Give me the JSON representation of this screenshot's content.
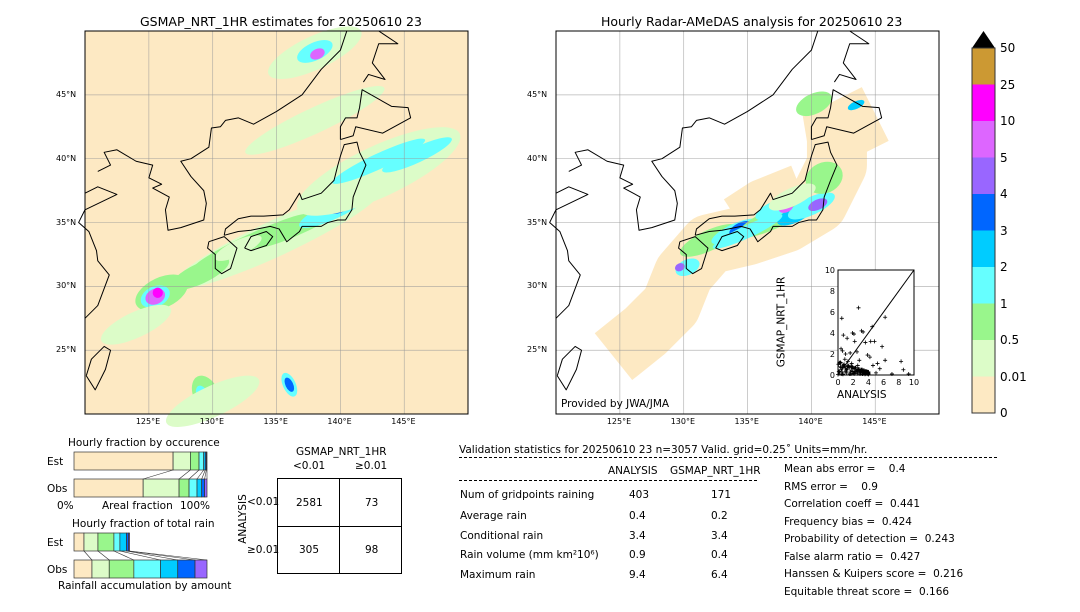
{
  "left_map": {
    "title": "GSMAP_NRT_1HR estimates for 20250610 23"
  },
  "right_map": {
    "title": "Hourly Radar-AMeDAS analysis for 20250610 23",
    "credit": "Provided by JWA/JMA"
  },
  "lon_ticks": [
    "125°E",
    "130°E",
    "135°E",
    "140°E",
    "145°E"
  ],
  "lat_ticks": [
    "45°N",
    "40°N",
    "35°N",
    "30°N",
    "25°N"
  ],
  "colorbar": {
    "labels": [
      "0",
      "0.01",
      "0.5",
      "1",
      "2",
      "3",
      "4",
      "5",
      "10",
      "25",
      "50"
    ],
    "colors": [
      "#fde9c3",
      "#dcfcc8",
      "#99f68c",
      "#66ffff",
      "#00ccff",
      "#0066ff",
      "#9966ff",
      "#dd66ff",
      "#ff00ff",
      "#cc9933"
    ],
    "extend_color": "#000000"
  },
  "occurrence": {
    "title": "Hourly fraction by occurence",
    "rows": [
      "Est",
      "Obs"
    ],
    "xlabel_left": "0%",
    "xlabel_mid": "Areal fraction",
    "xlabel_right": "100%",
    "est": [
      0.745,
      0.13,
      0.065,
      0.035,
      0.012,
      0.008,
      0.005
    ],
    "obs": [
      0.52,
      0.27,
      0.075,
      0.06,
      0.035,
      0.022,
      0.018
    ]
  },
  "total_rain": {
    "title": "Hourly fraction of total rain",
    "rows": [
      "Est",
      "Obs"
    ],
    "xlabel": "Rainfall accumulation by amount",
    "est": [
      0.075,
      0.105,
      0.12,
      0.045,
      0.05,
      0.015,
      0.008
    ],
    "obs": [
      0.135,
      0.13,
      0.185,
      0.2,
      0.13,
      0.13,
      0.09
    ]
  },
  "contingency": {
    "title": "GSMAP_NRT_1HR",
    "col_labels": [
      "<0.01",
      "≥0.01"
    ],
    "row_title": "ANALYSIS",
    "row_labels": [
      "<0.01",
      "≥0.01"
    ],
    "cells": [
      [
        "2581",
        "73"
      ],
      [
        "305",
        "98"
      ]
    ]
  },
  "stats": {
    "header": "Validation statistics for 20250610 23  n=3057 Valid. grid=0.25˚ Units=mm/hr.",
    "col_analysis": "ANALYSIS",
    "col_gsmap": "GSMAP_NRT_1HR",
    "rows": [
      {
        "label": "Num of gridpoints raining",
        "a": "403",
        "g": "171"
      },
      {
        "label": "Average rain",
        "a": "0.4",
        "g": "0.2"
      },
      {
        "label": "Conditional rain",
        "a": "3.4",
        "g": "3.4"
      },
      {
        "label": "Rain volume (mm km²10⁶)",
        "a": "0.9",
        "g": "0.4"
      },
      {
        "label": "Maximum rain",
        "a": "9.4",
        "g": "6.4"
      }
    ],
    "scores": [
      "Mean abs error =    0.4",
      "RMS error =    0.9",
      "Correlation coeff =  0.441",
      "Frequency bias =  0.424",
      "Probability of detection =  0.243",
      "False alarm ratio =  0.427",
      "Hanssen & Kuipers score =  0.216",
      "Equitable threat score =  0.166"
    ]
  },
  "chart_data": {
    "type": "scatter",
    "xlabel": "ANALYSIS",
    "ylabel": "GSMAP_NRT_1HR",
    "xlim": [
      0,
      10
    ],
    "ylim": [
      0,
      10
    ],
    "ticks": [
      "0",
      "2",
      "4",
      "6",
      "8",
      "10"
    ],
    "points": [
      [
        0.5,
        5.4
      ],
      [
        2.7,
        6.4
      ],
      [
        6.2,
        5.5
      ],
      [
        4.5,
        4.6
      ],
      [
        3.1,
        4.2
      ],
      [
        3.3,
        4.1
      ],
      [
        1.9,
        4.0
      ],
      [
        2.1,
        3.9
      ],
      [
        0.7,
        3.8
      ],
      [
        1.2,
        3.5
      ],
      [
        2.2,
        3.2
      ],
      [
        3.6,
        3.1
      ],
      [
        4.3,
        3.2
      ],
      [
        4.8,
        3.2
      ],
      [
        5.8,
        2.7
      ],
      [
        0.4,
        2.5
      ],
      [
        0.6,
        2.3
      ],
      [
        1.0,
        2.0
      ],
      [
        1.6,
        2.1
      ],
      [
        2.5,
        2.2
      ],
      [
        3.9,
        1.9
      ],
      [
        4.2,
        1.7
      ],
      [
        6.2,
        1.4
      ],
      [
        8.3,
        1.3
      ],
      [
        8.6,
        0.5
      ],
      [
        7.1,
        0.1
      ],
      [
        9.3,
        0.1
      ],
      [
        0.3,
        1.2
      ],
      [
        0.8,
        1.0
      ],
      [
        1.4,
        0.8
      ],
      [
        2.0,
        0.6
      ],
      [
        2.6,
        0.9
      ],
      [
        3.2,
        0.5
      ],
      [
        3.8,
        0.3
      ],
      [
        4.6,
        0.9
      ],
      [
        5.2,
        1.1
      ],
      [
        5.5,
        0.6
      ],
      [
        0.2,
        0.3
      ],
      [
        0.5,
        0.1
      ],
      [
        1.1,
        0.2
      ],
      [
        1.7,
        0.1
      ],
      [
        2.3,
        0.3
      ],
      [
        2.9,
        0.1
      ],
      [
        4.0,
        0.1
      ],
      [
        5.0,
        0.2
      ],
      [
        0.9,
        1.5
      ],
      [
        1.3,
        1.3
      ],
      [
        0.4,
        0.7
      ],
      [
        1.8,
        1.1
      ],
      [
        2.8,
        1.4
      ]
    ],
    "diagonal": true
  }
}
